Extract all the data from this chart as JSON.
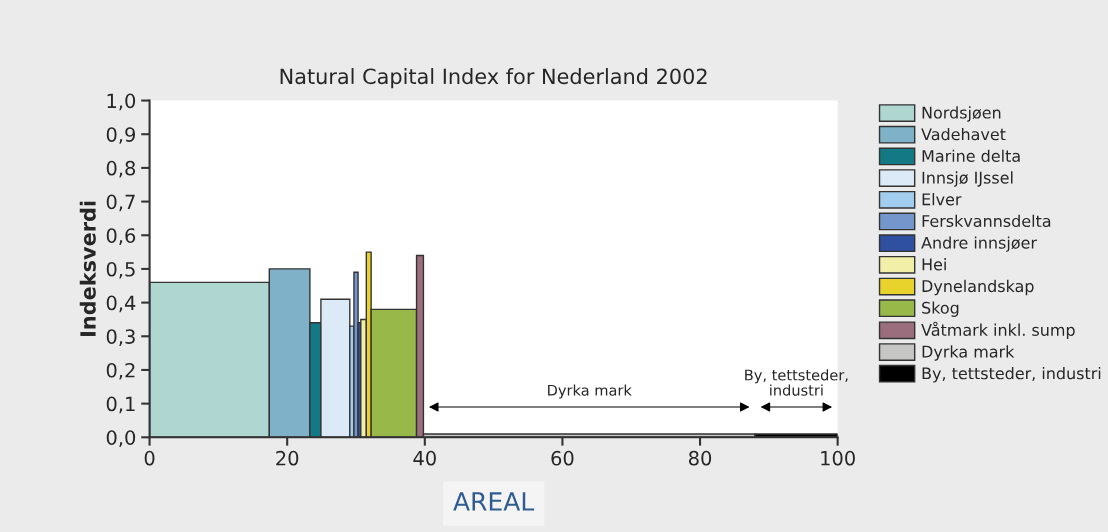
{
  "chart_data": {
    "type": "histogram",
    "title": "Natural Capital Index for Nederland 2002",
    "xlabel": "AREAL",
    "ylabel": "Indeksverdi",
    "bins": [
      0,
      17.4,
      23.3,
      24.9,
      29.1,
      29.7,
      30.3,
      30.7,
      31.5,
      32.2,
      38.8,
      39.8,
      88.0,
      100
    ],
    "series": [
      {
        "name": "Nordsjøen",
        "color": "#b0d6d2",
        "values": [
          0.46,
          null,
          null,
          null,
          null,
          null,
          null,
          null,
          null,
          null,
          null,
          null,
          null
        ]
      },
      {
        "name": "Vadehavet",
        "color": "#7fb1c8",
        "values": [
          null,
          0.5,
          null,
          null,
          null,
          null,
          null,
          null,
          null,
          null,
          null,
          null,
          null
        ]
      },
      {
        "name": "Marine delta",
        "color": "#137a85",
        "values": [
          null,
          null,
          0.34,
          null,
          null,
          null,
          null,
          null,
          null,
          null,
          null,
          null,
          null
        ]
      },
      {
        "name": "Innsjø IJssel",
        "color": "#dceaf8",
        "values": [
          null,
          null,
          null,
          0.41,
          null,
          null,
          null,
          null,
          null,
          null,
          null,
          null,
          null
        ]
      },
      {
        "name": "Elver",
        "color": "#a3cdef",
        "values": [
          null,
          null,
          null,
          null,
          0.33,
          null,
          null,
          null,
          null,
          null,
          null,
          null,
          null
        ]
      },
      {
        "name": "Ferskvannsdelta",
        "color": "#7596cc",
        "values": [
          null,
          null,
          null,
          null,
          null,
          0.49,
          null,
          null,
          null,
          null,
          null,
          null,
          null
        ]
      },
      {
        "name": "Andre innsjøer",
        "color": "#2f4fa0",
        "values": [
          null,
          null,
          null,
          null,
          null,
          null,
          0.34,
          null,
          null,
          null,
          null,
          null,
          null
        ]
      },
      {
        "name": "Hei",
        "color": "#f2f0a8",
        "values": [
          null,
          null,
          null,
          null,
          null,
          null,
          null,
          0.35,
          null,
          null,
          null,
          null,
          null
        ]
      },
      {
        "name": "Dynelandskap",
        "color": "#e8d22c",
        "values": [
          null,
          null,
          null,
          null,
          null,
          null,
          null,
          null,
          0.55,
          null,
          null,
          null,
          null
        ]
      },
      {
        "name": "Skog",
        "color": "#99b84a",
        "values": [
          null,
          null,
          null,
          null,
          null,
          null,
          null,
          null,
          null,
          0.38,
          null,
          null,
          null
        ]
      },
      {
        "name": "Våtmark inkl. sump",
        "color": "#9a6e7c",
        "values": [
          null,
          null,
          null,
          null,
          null,
          null,
          null,
          null,
          null,
          null,
          0.54,
          null,
          null
        ]
      },
      {
        "name": "Dyrka mark",
        "color": "#c6c6c4",
        "values": [
          null,
          null,
          null,
          null,
          null,
          null,
          null,
          null,
          null,
          null,
          null,
          0.01,
          null
        ]
      },
      {
        "name": "By, tettsteder, industri",
        "color": "#000000",
        "values": [
          null,
          null,
          null,
          null,
          null,
          null,
          null,
          null,
          null,
          null,
          null,
          null,
          0.01
        ]
      }
    ],
    "xlim": [
      0,
      100
    ],
    "xticks": [
      0,
      20,
      40,
      60,
      80,
      100
    ],
    "ylim": [
      0,
      1.0
    ],
    "yticks": [
      {
        "value": 0,
        "label": "0,0"
      },
      {
        "value": 0.1,
        "label": "0,1"
      },
      {
        "value": 0.2,
        "label": "0,2"
      },
      {
        "value": 0.3,
        "label": "0,3"
      },
      {
        "value": 0.4,
        "label": "0,4"
      },
      {
        "value": 0.5,
        "label": "0,5"
      },
      {
        "value": 0.6,
        "label": "0,6"
      },
      {
        "value": 0.7,
        "label": "0,7"
      },
      {
        "value": 0.8,
        "label": "0,8"
      },
      {
        "value": 0.9,
        "label": "0,9"
      },
      {
        "value": 1.0,
        "label": "1,0"
      }
    ],
    "annotations": [
      "Dyrka mark",
      "By, tettsteder,\nindustri"
    ],
    "legend": "right",
    "grid": false
  }
}
